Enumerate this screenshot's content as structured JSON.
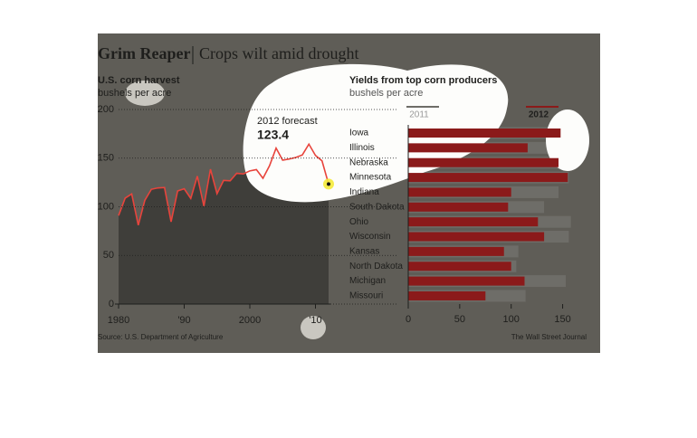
{
  "header": {
    "title": "Grim Reaper",
    "subtitle": "Crops wilt amid drought"
  },
  "source": "Source: U.S. Department of Agriculture",
  "credit": "The Wall Street Journal",
  "chart_data": [
    {
      "type": "area",
      "title": "U.S. corn harvest",
      "subtitle": "bushels per acre",
      "x": [
        1980,
        1981,
        1982,
        1983,
        1984,
        1985,
        1986,
        1987,
        1988,
        1989,
        1990,
        1991,
        1992,
        1993,
        1994,
        1995,
        1996,
        1997,
        1998,
        1999,
        2000,
        2001,
        2002,
        2003,
        2004,
        2005,
        2006,
        2007,
        2008,
        2009,
        2010,
        2011,
        2012
      ],
      "series": [
        {
          "name": "Yield",
          "color": "#e8443c",
          "values": [
            91.0,
            108.9,
            113.2,
            81.1,
            106.7,
            118.0,
            119.4,
            119.8,
            84.6,
            116.3,
            118.5,
            108.6,
            131.5,
            100.7,
            138.6,
            113.5,
            127.1,
            126.7,
            134.4,
            133.8,
            136.9,
            138.2,
            129.3,
            142.2,
            160.3,
            147.9,
            149.1,
            150.7,
            153.3,
            164.4,
            152.8,
            147.2,
            123.4
          ]
        }
      ],
      "xlim": [
        1980,
        2012
      ],
      "xticks": [
        1980,
        {
          "value": 1990,
          "label": "'90"
        },
        2000,
        {
          "value": 2010,
          "label": "'10"
        }
      ],
      "ylim": [
        0,
        200
      ],
      "yticks": [
        0,
        50,
        100,
        150,
        200
      ],
      "grid": true,
      "annotation": {
        "label": "2012 forecast",
        "value": 123.4
      }
    },
    {
      "type": "hbar",
      "title": "Yields from top corn producers",
      "subtitle": "bushels per acre",
      "categories": [
        "Iowa",
        "Illinois",
        "Nebraska",
        "Minnesota",
        "Indiana",
        "South Dakota",
        "Ohio",
        "Wisconsin",
        "Kansas",
        "North Dakota",
        "Michigan",
        "Missouri"
      ],
      "series": [
        {
          "name": "2011",
          "color": "#6e6d68",
          "values": [
            172,
            157,
            160,
            156,
            146,
            132,
            158,
            156,
            107,
            105,
            153,
            114
          ]
        },
        {
          "name": "2012",
          "color": "#8b1a1a",
          "values": [
            148,
            116,
            146,
            155,
            100,
            97,
            126,
            132,
            93,
            100,
            113,
            75
          ]
        }
      ],
      "xlim": [
        0,
        175
      ],
      "xticks": [
        0,
        50,
        100,
        150
      ]
    }
  ]
}
